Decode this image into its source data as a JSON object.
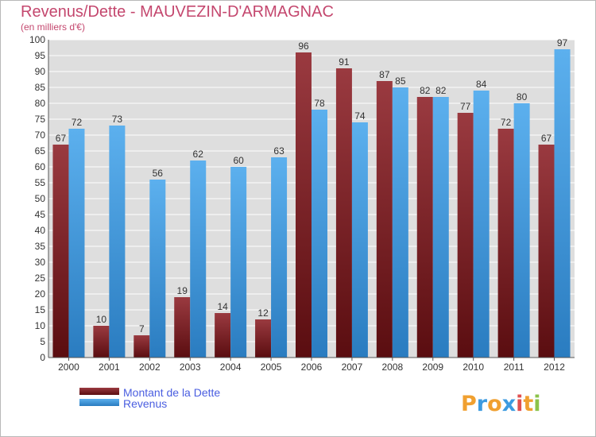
{
  "chart_data": {
    "type": "bar",
    "title": "Revenus/Dette - MAUVEZIN-D'ARMAGNAC",
    "subtitle": "(en milliers d'€)",
    "categories": [
      "2000",
      "2001",
      "2002",
      "2003",
      "2004",
      "2005",
      "2006",
      "2007",
      "2008",
      "2009",
      "2010",
      "2011",
      "2012"
    ],
    "series": [
      {
        "name": "Montant de la Dette",
        "color": "#8b1f25",
        "values": [
          67,
          10,
          7,
          19,
          14,
          12,
          96,
          91,
          87,
          82,
          77,
          72,
          67
        ]
      },
      {
        "name": "Revenus",
        "color": "#3d9be0",
        "values": [
          72,
          73,
          56,
          62,
          60,
          63,
          78,
          74,
          85,
          82,
          84,
          80,
          97
        ]
      }
    ],
    "ylim": [
      0,
      100
    ],
    "yticks": [
      0,
      5,
      10,
      15,
      20,
      25,
      30,
      35,
      40,
      45,
      50,
      55,
      60,
      65,
      70,
      75,
      80,
      85,
      90,
      95,
      100
    ],
    "grid": true,
    "legend": "bottom-left"
  },
  "logo": {
    "letters": [
      "P",
      "r",
      "o",
      "x",
      "i",
      "t",
      "i"
    ],
    "colors": [
      "#f0a030",
      "#3d9be0",
      "#f0a030",
      "#3d9be0",
      "#e05050",
      "#f0a030",
      "#8bc34a"
    ]
  }
}
